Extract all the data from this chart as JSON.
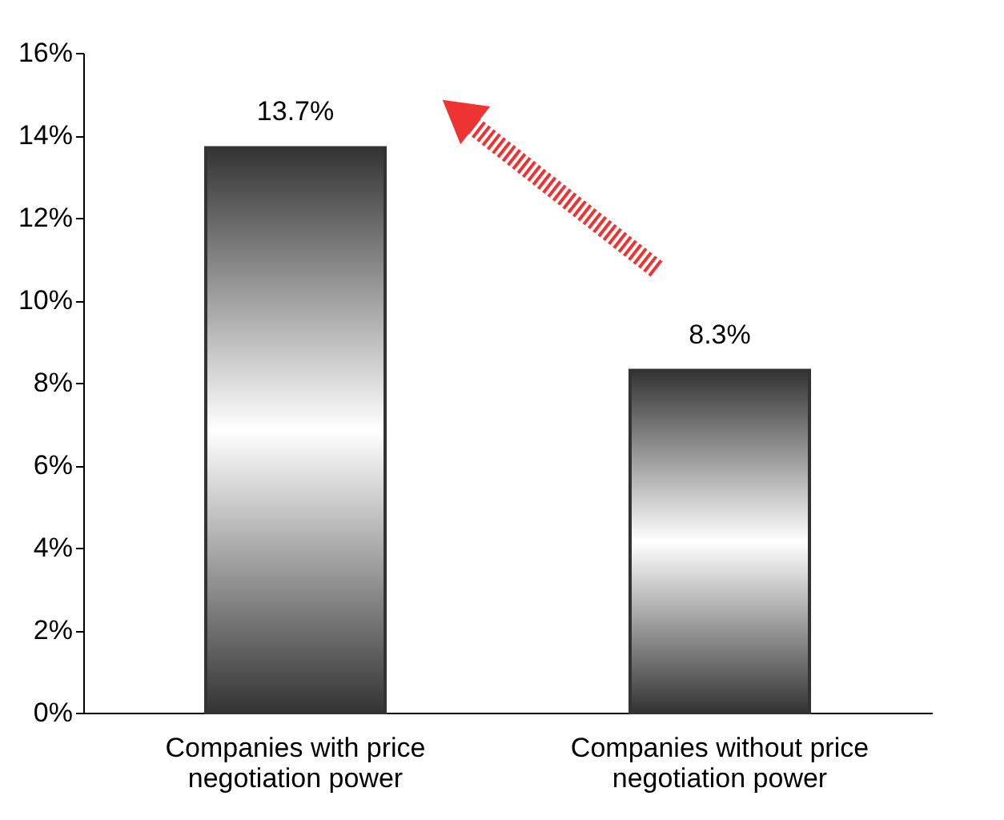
{
  "chart_data": {
    "type": "bar",
    "categories": [
      "Companies with price negotiation power",
      "Companies without price negotiation power"
    ],
    "values": [
      13.7,
      8.3
    ],
    "value_labels": [
      "13.7%",
      "8.3%"
    ],
    "color": "#333333",
    "ylim": [
      0,
      16
    ],
    "yticks": [
      {
        "value": 0,
        "label": "0%"
      },
      {
        "value": 2,
        "label": "2%"
      },
      {
        "value": 4,
        "label": "4%"
      },
      {
        "value": 6,
        "label": "6%"
      },
      {
        "value": 8,
        "label": "8%"
      },
      {
        "value": 10,
        "label": "10%"
      },
      {
        "value": 12,
        "label": "12%"
      },
      {
        "value": 14,
        "label": "14%"
      },
      {
        "value": 16,
        "label": "16%"
      }
    ],
    "grid": false
  }
}
